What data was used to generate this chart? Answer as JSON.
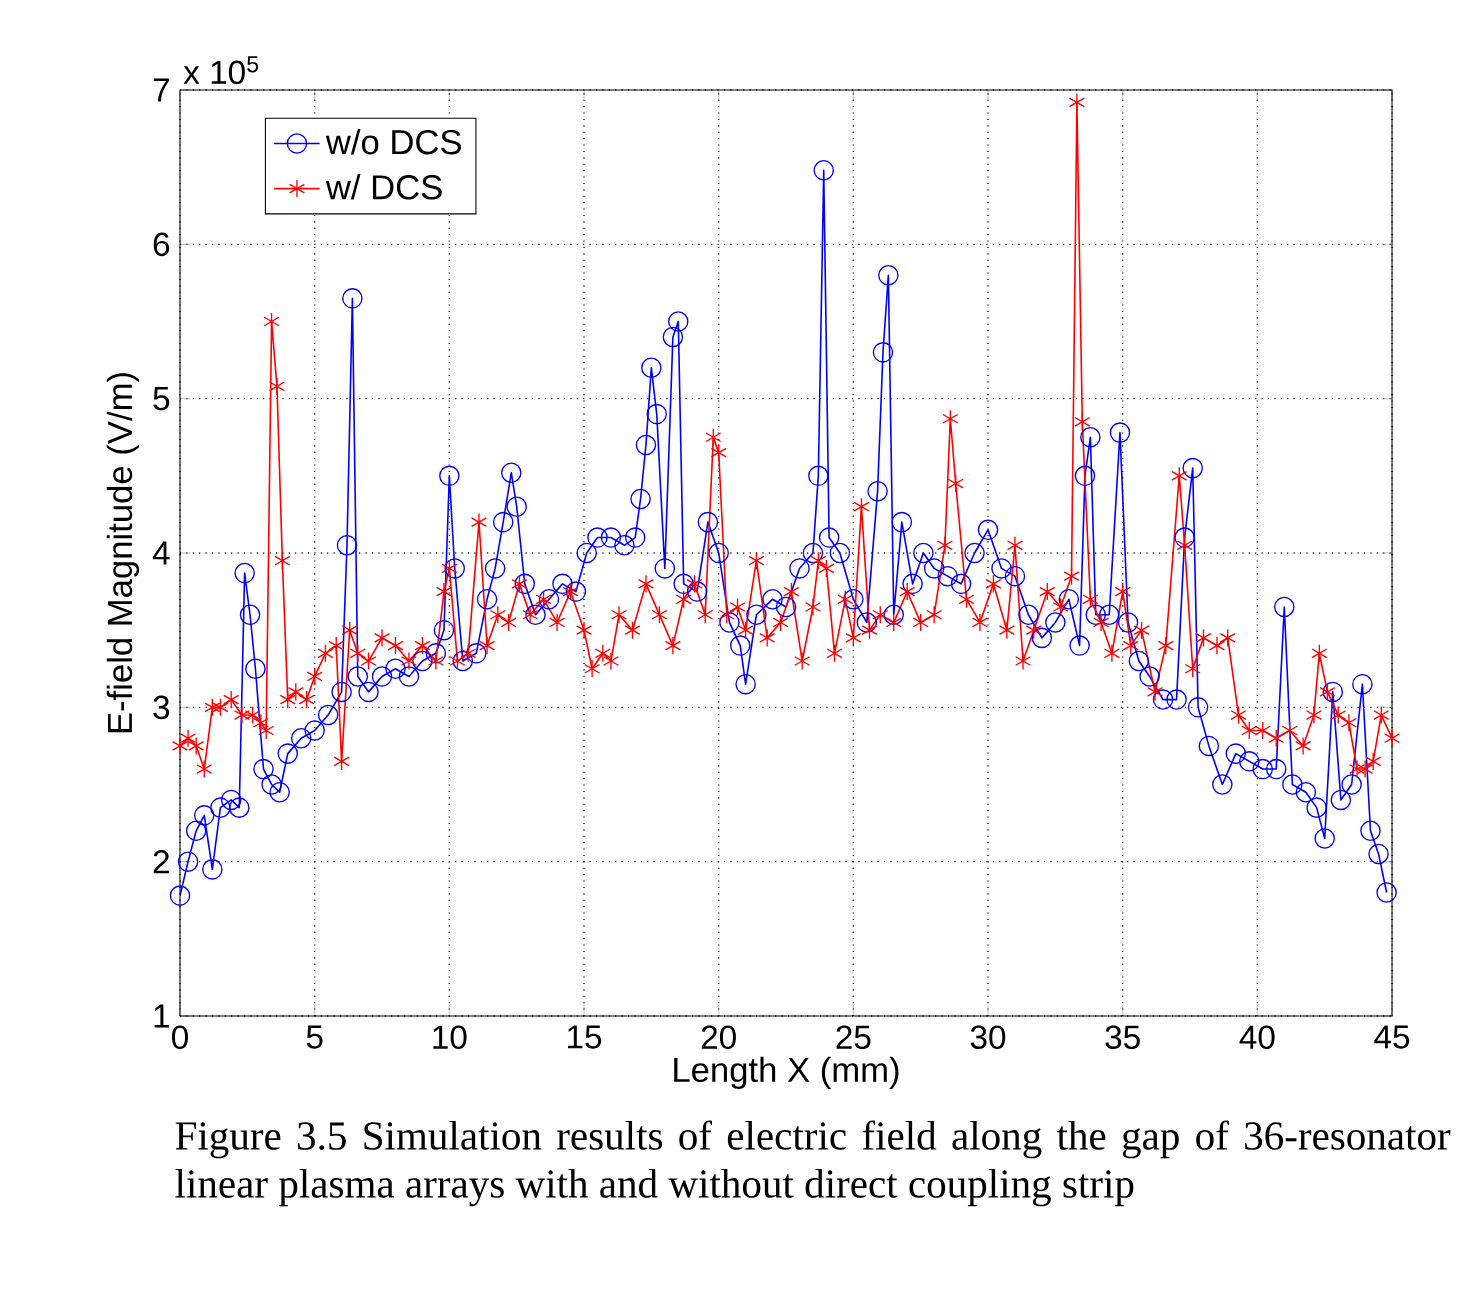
{
  "chart_data": {
    "type": "line",
    "xlabel": "Length X (mm)",
    "ylabel": "E-field Magnitude (V/m)",
    "annotations": [
      "x 10$^{5}$",
      "Figure 3.5 Simulation results of electric field along the gap of 36-resonator linear plasma arrays with and without direct coupling strip"
    ],
    "xlim": [
      0,
      45
    ],
    "ylim": [
      1,
      7
    ],
    "xticks": [
      0,
      5,
      10,
      15,
      20,
      25,
      30,
      35,
      40,
      45
    ],
    "yticks": [
      1,
      2,
      3,
      4,
      5,
      6,
      7
    ],
    "grid": true,
    "legend": "top left",
    "line_style": "solid",
    "series": [
      {
        "name": "w/o DCS",
        "color": "#0000ff",
        "marker": "circle",
        "x": [
          0,
          0.3,
          0.6,
          0.9,
          1.2,
          1.5,
          1.9,
          2.2,
          2.4,
          2.6,
          2.8,
          3.1,
          3.4,
          3.7,
          4.0,
          4.5,
          5.0,
          5.5,
          6.0,
          6.2,
          6.4,
          6.6,
          7,
          7.5,
          8,
          8.5,
          9,
          9.5,
          9.8,
          10.0,
          10.2,
          10.5,
          11,
          11.4,
          11.7,
          12.0,
          12.3,
          12.5,
          12.8,
          13.2,
          13.7,
          14.2,
          14.7,
          15.1,
          15.5,
          16,
          16.5,
          16.9,
          17.1,
          17.3,
          17.5,
          17.7,
          18.0,
          18.3,
          18.5,
          18.7,
          19.2,
          19.6,
          20,
          20.4,
          20.8,
          21.0,
          21.4,
          22,
          22.5,
          23,
          23.5,
          23.7,
          23.9,
          24.1,
          24.5,
          25,
          25.5,
          25.9,
          26.1,
          26.3,
          26.5,
          26.8,
          27.2,
          27.6,
          28,
          28.5,
          29,
          29.5,
          30,
          30.5,
          31,
          31.5,
          32,
          32.5,
          33,
          33.4,
          33.6,
          33.8,
          34.0,
          34.5,
          34.9,
          35.2,
          35.6,
          36,
          36.5,
          37,
          37.3,
          37.6,
          37.8,
          38.2,
          38.7,
          39.2,
          39.7,
          40.2,
          40.7,
          41.0,
          41.3,
          41.8,
          42.2,
          42.5,
          42.8,
          43.1,
          43.5,
          43.9,
          44.2,
          44.5,
          44.8
        ],
        "values": [
          1.78,
          2.0,
          2.2,
          2.3,
          1.95,
          2.35,
          2.4,
          2.35,
          3.87,
          3.6,
          3.25,
          2.6,
          2.5,
          2.45,
          2.7,
          2.8,
          2.85,
          2.95,
          3.1,
          4.05,
          5.65,
          3.2,
          3.1,
          3.2,
          3.25,
          3.2,
          3.3,
          3.35,
          3.5,
          4.5,
          3.9,
          3.3,
          3.35,
          3.7,
          3.9,
          4.2,
          4.52,
          4.3,
          3.8,
          3.6,
          3.7,
          3.8,
          3.75,
          4.0,
          4.1,
          4.1,
          4.05,
          4.1,
          4.35,
          4.7,
          5.2,
          4.9,
          3.9,
          5.4,
          5.5,
          3.8,
          3.75,
          4.2,
          4.0,
          3.55,
          3.4,
          3.15,
          3.6,
          3.7,
          3.65,
          3.9,
          4.0,
          4.5,
          6.48,
          4.1,
          4.0,
          3.7,
          3.55,
          4.4,
          5.3,
          5.8,
          3.6,
          4.2,
          3.8,
          4.0,
          3.9,
          3.85,
          3.8,
          4.0,
          4.15,
          3.9,
          3.85,
          3.6,
          3.45,
          3.55,
          3.7,
          3.4,
          4.5,
          4.75,
          3.6,
          3.6,
          4.78,
          3.55,
          3.3,
          3.2,
          3.05,
          3.05,
          4.1,
          4.55,
          3.0,
          2.75,
          2.5,
          2.7,
          2.65,
          2.6,
          2.6,
          3.65,
          2.5,
          2.45,
          2.35,
          2.15,
          3.1,
          2.4,
          2.5,
          3.15,
          2.2,
          2.05,
          1.8
        ]
      },
      {
        "name": "w/ DCS",
        "color": "#ff0000",
        "marker": "cross",
        "x": [
          0,
          0.3,
          0.6,
          0.9,
          1.2,
          1.5,
          1.9,
          2.3,
          2.7,
          3.0,
          3.2,
          3.4,
          3.6,
          3.8,
          4.0,
          4.3,
          4.7,
          5.0,
          5.4,
          5.8,
          6.0,
          6.3,
          6.6,
          7,
          7.5,
          8,
          8.5,
          9,
          9.5,
          9.8,
          10.0,
          10.3,
          10.7,
          11.1,
          11.4,
          11.8,
          12.2,
          12.6,
          13,
          13.5,
          14,
          14.5,
          15,
          15.3,
          15.7,
          16,
          16.3,
          16.8,
          17.3,
          17.8,
          18.3,
          18.7,
          19.1,
          19.5,
          19.8,
          20.0,
          20.3,
          20.7,
          21,
          21.4,
          21.8,
          22.3,
          22.7,
          23.1,
          23.5,
          23.7,
          24.0,
          24.3,
          24.7,
          25,
          25.3,
          25.6,
          26,
          26.5,
          27,
          27.5,
          28,
          28.4,
          28.6,
          28.8,
          29.2,
          29.7,
          30.2,
          30.7,
          31.0,
          31.3,
          31.7,
          32.2,
          32.7,
          33.1,
          33.3,
          33.5,
          33.8,
          34.2,
          34.6,
          35.0,
          35.3,
          35.7,
          36.2,
          36.6,
          37.1,
          37.3,
          37.6,
          38,
          38.5,
          38.9,
          39.3,
          39.7,
          40.2,
          40.7,
          41.2,
          41.7,
          42.1,
          42.3,
          42.6,
          43,
          43.4,
          43.7,
          44.0,
          44.3,
          44.6,
          45
        ],
        "values": [
          2.75,
          2.8,
          2.75,
          2.6,
          3.0,
          3.0,
          3.05,
          2.95,
          2.95,
          2.9,
          2.85,
          5.5,
          5.08,
          3.95,
          3.05,
          3.1,
          3.05,
          3.2,
          3.35,
          3.4,
          2.65,
          3.5,
          3.35,
          3.3,
          3.45,
          3.4,
          3.3,
          3.4,
          3.3,
          3.75,
          3.9,
          3.3,
          3.35,
          4.2,
          3.4,
          3.6,
          3.55,
          3.8,
          3.6,
          3.7,
          3.55,
          3.75,
          3.5,
          3.25,
          3.35,
          3.3,
          3.6,
          3.5,
          3.8,
          3.6,
          3.4,
          3.7,
          3.8,
          3.6,
          4.75,
          4.65,
          3.6,
          3.65,
          3.5,
          3.95,
          3.45,
          3.55,
          3.75,
          3.3,
          3.65,
          3.95,
          3.9,
          3.35,
          3.7,
          3.45,
          4.3,
          3.5,
          3.6,
          3.55,
          3.75,
          3.55,
          3.6,
          4.05,
          4.87,
          4.45,
          3.7,
          3.55,
          3.8,
          3.5,
          4.05,
          3.3,
          3.5,
          3.75,
          3.65,
          3.85,
          6.92,
          4.85,
          3.7,
          3.55,
          3.35,
          3.75,
          3.4,
          3.5,
          3.1,
          3.4,
          4.5,
          4.05,
          3.25,
          3.45,
          3.4,
          3.45,
          2.95,
          2.85,
          2.85,
          2.8,
          2.85,
          2.75,
          2.95,
          3.35,
          3.1,
          2.95,
          2.9,
          2.6,
          2.6,
          2.65,
          2.95,
          2.8
        ]
      }
    ]
  }
}
